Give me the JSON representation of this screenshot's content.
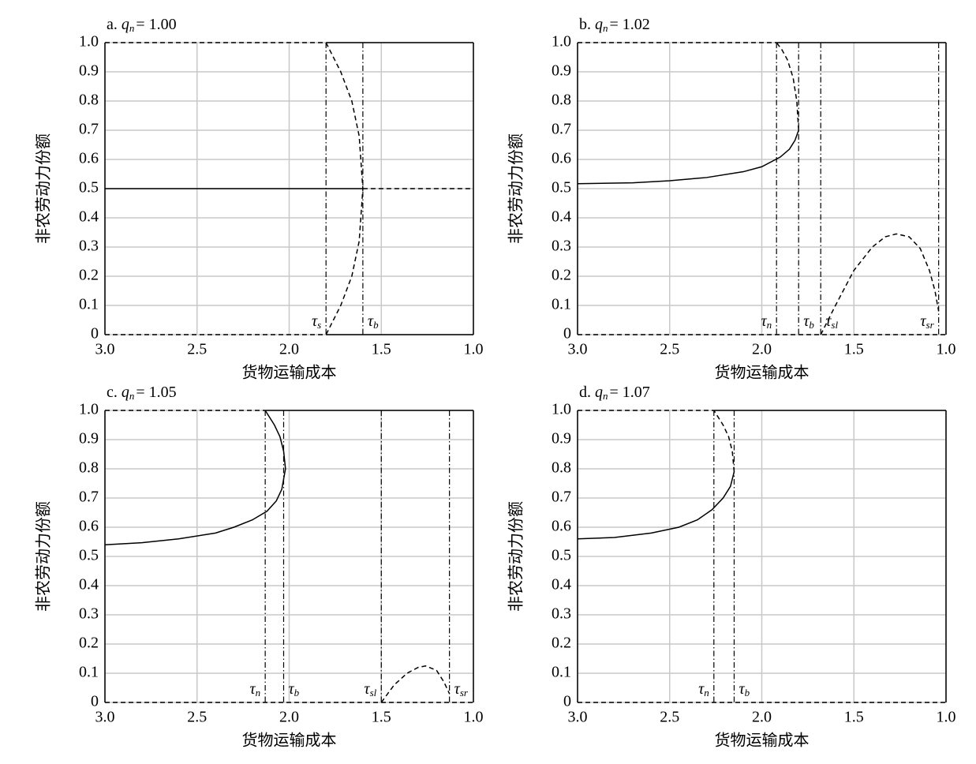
{
  "chart_data": [
    {
      "type": "line",
      "title": {
        "prefix": "a.",
        "symbol": "q",
        "subscript": "n",
        "value": "= 1.00"
      },
      "x_label": "货物运输成本",
      "y_label": "非农劳动力份额",
      "xlim": [
        3.0,
        1.0
      ],
      "ylim": [
        0,
        1.0
      ],
      "xticks": [
        {
          "value": 3.0,
          "label": "3.0"
        },
        2.5,
        {
          "value": 2.0,
          "label": "2.0"
        },
        1.5,
        {
          "value": 1.0,
          "label": "1.0"
        }
      ],
      "yticks": [
        0,
        0.1,
        0.2,
        0.3,
        0.4,
        0.5,
        0.6,
        0.7,
        0.8,
        0.9,
        {
          "value": 1.0,
          "label": "1.0"
        }
      ],
      "grid": true,
      "series": [
        {
          "color": "#000000",
          "style": "solid",
          "x": [
            3.0,
            1.6
          ],
          "values": [
            0.5,
            0.5
          ]
        },
        {
          "color": "#000000",
          "style": "dashed",
          "x": [
            1.6,
            1.0
          ],
          "values": [
            0.5,
            0.5
          ]
        },
        {
          "color": "#000000",
          "style": "dashed",
          "x": [
            3.0,
            1.8
          ],
          "values": [
            1.0,
            1.0
          ]
        },
        {
          "color": "#000000",
          "style": "solid",
          "x": [
            1.8,
            1.0
          ],
          "values": [
            1.0,
            1.0
          ]
        },
        {
          "color": "#000000",
          "style": "dashed",
          "x": [
            3.0,
            1.8
          ],
          "values": [
            0,
            0
          ]
        },
        {
          "color": "#000000",
          "style": "solid",
          "x": [
            1.8,
            1.0
          ],
          "values": [
            0,
            0
          ]
        },
        {
          "color": "#000000",
          "style": "dashed",
          "x": [
            1.8,
            1.72,
            1.66,
            1.62,
            1.6,
            1.62,
            1.66,
            1.72,
            1.8
          ],
          "values": [
            1.0,
            0.9,
            0.8,
            0.68,
            0.5,
            0.32,
            0.2,
            0.1,
            0
          ]
        }
      ],
      "annotations": [
        {
          "symbol": "τ",
          "subscript": "s",
          "x": 1.8
        },
        {
          "symbol": "τ",
          "subscript": "b",
          "x": 1.6
        }
      ]
    },
    {
      "type": "line",
      "title": {
        "prefix": "b.",
        "symbol": "q",
        "subscript": "n",
        "value": "= 1.02"
      },
      "x_label": "货物运输成本",
      "y_label": "非农劳动力份额",
      "xlim": [
        3.0,
        1.0
      ],
      "ylim": [
        0,
        1.0
      ],
      "xticks": [
        {
          "value": 3.0,
          "label": "3.0"
        },
        2.5,
        {
          "value": 2.0,
          "label": "2.0"
        },
        1.5,
        {
          "value": 1.0,
          "label": "1.0"
        }
      ],
      "yticks": [
        0,
        0.1,
        0.2,
        0.3,
        0.4,
        0.5,
        0.6,
        0.7,
        0.8,
        0.9,
        {
          "value": 1.0,
          "label": "1.0"
        }
      ],
      "grid": true,
      "series": [
        {
          "color": "#000000",
          "style": "solid",
          "x": [
            3.0,
            2.7,
            2.5,
            2.3,
            2.1,
            2.0,
            1.9,
            1.85,
            1.82,
            1.8
          ],
          "values": [
            0.517,
            0.52,
            0.527,
            0.538,
            0.558,
            0.575,
            0.608,
            0.635,
            0.665,
            0.7
          ]
        },
        {
          "color": "#000000",
          "style": "dashed",
          "x": [
            1.8,
            1.81,
            1.83,
            1.86,
            1.89,
            1.92
          ],
          "values": [
            0.7,
            0.8,
            0.88,
            0.94,
            0.975,
            1.0
          ]
        },
        {
          "color": "#000000",
          "style": "dashed",
          "x": [
            3.0,
            1.92
          ],
          "values": [
            1.0,
            1.0
          ]
        },
        {
          "color": "#000000",
          "style": "solid",
          "x": [
            1.92,
            1.0
          ],
          "values": [
            1.0,
            1.0
          ]
        },
        {
          "color": "#000000",
          "style": "dashed",
          "x": [
            3.0,
            1.0
          ],
          "values": [
            0,
            0
          ]
        },
        {
          "color": "#000000",
          "style": "dashed",
          "x": [
            1.68,
            1.6,
            1.5,
            1.4,
            1.33,
            1.27,
            1.2,
            1.14,
            1.09,
            1.06,
            1.04
          ],
          "values": [
            0,
            0.1,
            0.22,
            0.3,
            0.335,
            0.345,
            0.335,
            0.295,
            0.22,
            0.15,
            0.08
          ]
        }
      ],
      "annotations": [
        {
          "symbol": "τ",
          "subscript": "n",
          "x": 1.92
        },
        {
          "symbol": "τ",
          "subscript": "b",
          "x": 1.8
        },
        {
          "symbol": "τ",
          "subscript": "sl",
          "x": 1.68
        },
        {
          "symbol": "τ",
          "subscript": "sr",
          "x": 1.04
        }
      ]
    },
    {
      "type": "line",
      "title": {
        "prefix": "c.",
        "symbol": "q",
        "subscript": "n",
        "value": "= 1.05"
      },
      "x_label": "货物运输成本",
      "y_label": "非农劳动力份额",
      "xlim": [
        3.0,
        1.0
      ],
      "ylim": [
        0,
        1.0
      ],
      "xticks": [
        {
          "value": 3.0,
          "label": "3.0"
        },
        2.5,
        {
          "value": 2.0,
          "label": "2.0"
        },
        1.5,
        {
          "value": 1.0,
          "label": "1.0"
        }
      ],
      "yticks": [
        0,
        0.1,
        0.2,
        0.3,
        0.4,
        0.5,
        0.6,
        0.7,
        0.8,
        0.9,
        {
          "value": 1.0,
          "label": "1.0"
        }
      ],
      "grid": true,
      "series": [
        {
          "color": "#000000",
          "style": "solid",
          "x": [
            3.0,
            2.8,
            2.6,
            2.4,
            2.3,
            2.2,
            2.12,
            2.07,
            2.04,
            2.02,
            2.03,
            2.05,
            2.08,
            2.13
          ],
          "values": [
            0.54,
            0.547,
            0.56,
            0.58,
            0.6,
            0.625,
            0.655,
            0.69,
            0.73,
            0.8,
            0.86,
            0.91,
            0.95,
            1.0
          ]
        },
        {
          "color": "#000000",
          "style": "dashed",
          "x": [
            3.0,
            2.13
          ],
          "values": [
            1.0,
            1.0
          ]
        },
        {
          "color": "#000000",
          "style": "solid",
          "x": [
            2.13,
            1.0
          ],
          "values": [
            1.0,
            1.0
          ]
        },
        {
          "color": "#000000",
          "style": "dashed",
          "x": [
            3.0,
            1.0
          ],
          "values": [
            0,
            0
          ]
        },
        {
          "color": "#000000",
          "style": "dashed",
          "x": [
            1.5,
            1.43,
            1.36,
            1.3,
            1.26,
            1.2,
            1.16,
            1.13
          ],
          "values": [
            0,
            0.06,
            0.1,
            0.12,
            0.125,
            0.11,
            0.07,
            0.03
          ]
        }
      ],
      "annotations": [
        {
          "symbol": "τ",
          "subscript": "n",
          "x": 2.13
        },
        {
          "symbol": "τ",
          "subscript": "b",
          "x": 2.03
        },
        {
          "symbol": "τ",
          "subscript": "sl",
          "x": 1.5
        },
        {
          "symbol": "τ",
          "subscript": "sr",
          "x": 1.13
        }
      ]
    },
    {
      "type": "line",
      "title": {
        "prefix": "d.",
        "symbol": "q",
        "subscript": "n",
        "value": "= 1.07"
      },
      "x_label": "货物运输成本",
      "y_label": "非农劳动力份额",
      "xlim": [
        3.0,
        1.0
      ],
      "ylim": [
        0,
        1.0
      ],
      "xticks": [
        {
          "value": 3.0,
          "label": "3.0"
        },
        2.5,
        {
          "value": 2.0,
          "label": "2.0"
        },
        1.5,
        {
          "value": 1.0,
          "label": "1.0"
        }
      ],
      "yticks": [
        0,
        0.1,
        0.2,
        0.3,
        0.4,
        0.5,
        0.6,
        0.7,
        0.8,
        0.9,
        {
          "value": 1.0,
          "label": "1.0"
        }
      ],
      "grid": true,
      "series": [
        {
          "color": "#000000",
          "style": "solid",
          "x": [
            3.0,
            2.8,
            2.6,
            2.45,
            2.35,
            2.27,
            2.21,
            2.17,
            2.15
          ],
          "values": [
            0.56,
            0.565,
            0.58,
            0.6,
            0.625,
            0.66,
            0.7,
            0.74,
            0.79
          ]
        },
        {
          "color": "#000000",
          "style": "dashed",
          "x": [
            2.15,
            2.16,
            2.18,
            2.21,
            2.26
          ],
          "values": [
            0.79,
            0.86,
            0.91,
            0.95,
            1.0
          ]
        },
        {
          "color": "#000000",
          "style": "dashed",
          "x": [
            3.0,
            2.26
          ],
          "values": [
            1.0,
            1.0
          ]
        },
        {
          "color": "#000000",
          "style": "solid",
          "x": [
            2.26,
            1.0
          ],
          "values": [
            1.0,
            1.0
          ]
        },
        {
          "color": "#000000",
          "style": "dashed",
          "x": [
            3.0,
            1.0
          ],
          "values": [
            0,
            0
          ]
        }
      ],
      "annotations": [
        {
          "symbol": "τ",
          "subscript": "n",
          "x": 2.26
        },
        {
          "symbol": "τ",
          "subscript": "b",
          "x": 2.15
        }
      ]
    }
  ]
}
